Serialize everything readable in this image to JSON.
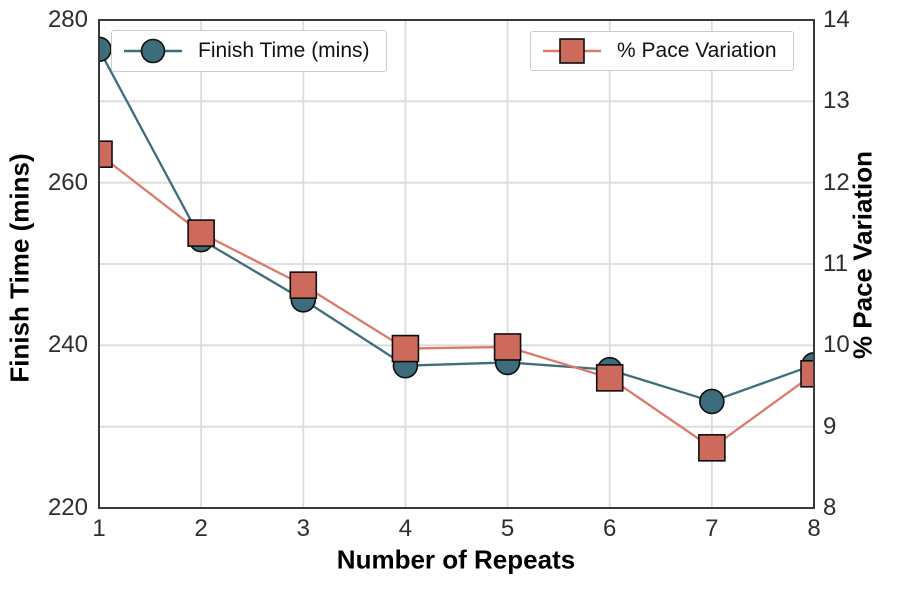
{
  "figure": {
    "background": "#ffffff",
    "frame_color": "#3a3a3a",
    "grid_color": "#dcdcdc",
    "tick_color": "#2e2e2e",
    "label_color": "#000000"
  },
  "chart_data": {
    "type": "line",
    "x": [
      1,
      2,
      3,
      4,
      5,
      6,
      7,
      8
    ],
    "x_ticks": [
      "1",
      "2",
      "3",
      "4",
      "5",
      "6",
      "7",
      "8"
    ],
    "xlabel": "Number of Repeats",
    "grid": true,
    "legend_position": "top",
    "left_axis": {
      "label": "Finish Time (mins)",
      "lim": [
        220,
        280
      ],
      "ticks": [
        220,
        240,
        260,
        280
      ]
    },
    "right_axis": {
      "label": "% Pace Variation",
      "lim": [
        8,
        14
      ],
      "ticks": [
        8,
        9,
        10,
        11,
        12,
        13,
        14
      ]
    },
    "series": [
      {
        "name": "Finish Time (mins)",
        "axis": "left",
        "marker": "circle",
        "line_color": "#3e6e7e",
        "fill_color": "#3d6c7c",
        "edge_color": "#0e0e0e",
        "values": [
          276.4,
          253.0,
          245.6,
          237.5,
          237.9,
          237.0,
          233.1,
          237.6
        ]
      },
      {
        "name": "% Pace Variation",
        "axis": "right",
        "marker": "square",
        "line_color": "#dd7b68",
        "fill_color": "#cd6a5b",
        "edge_color": "#0e0e0e",
        "values": [
          12.35,
          11.38,
          10.74,
          9.96,
          9.98,
          9.6,
          8.74,
          9.65
        ]
      }
    ]
  },
  "legend": {
    "finish_label": "Finish Time (mins)",
    "pace_label": "% Pace Variation"
  }
}
